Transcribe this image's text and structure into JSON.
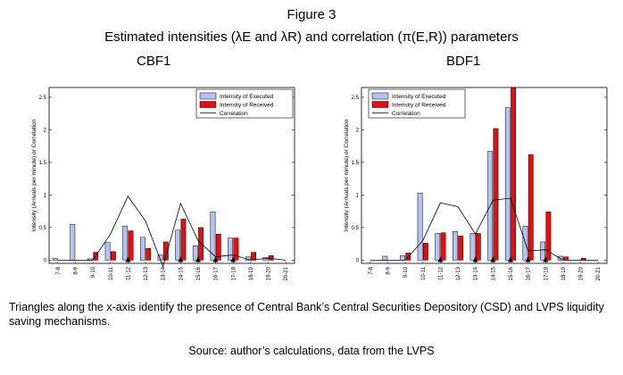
{
  "figure": {
    "title": "Figure 3",
    "subtitle": "Estimated intensities (λE and λR) and correlation (π(E,R)) parameters",
    "footnote": "Triangles along the x-axis identify the presence of Central Bank’s Central Securities Depository (CSD) and LVPS liquidity saving mechanisms.",
    "source": "Source: author’s calculations, data from the LVPS"
  },
  "colors": {
    "executed": "#b7c3ef",
    "received": "#e01010",
    "correlation": "#000000"
  },
  "chart_data": [
    {
      "type": "bar",
      "title": "CBF1",
      "ylabel": "Intensity (Arrivals per minute) or Correlation",
      "ylim": [
        -0.05,
        2.65
      ],
      "yticks": [
        "0",
        "0.5",
        "1",
        "1.5",
        "2",
        "2.5"
      ],
      "categories": [
        "7-8",
        "8-9",
        "9-10",
        "10-11",
        "11-12",
        "12-13",
        "13-14",
        "14-15",
        "15-16",
        "16-17",
        "17-18",
        "18-19",
        "19-20",
        "20-21"
      ],
      "legend_placement": "top-right",
      "series": [
        {
          "name": "Intensity of Executed",
          "kind": "bar",
          "values": [
            0.03,
            0.55,
            0.02,
            0.27,
            0.52,
            0.35,
            0.08,
            0.46,
            0.22,
            0.74,
            0.34,
            0.05,
            0.04,
            0.0
          ]
        },
        {
          "name": "Intensity of Received",
          "kind": "bar",
          "values": [
            0.0,
            0.0,
            0.12,
            0.13,
            0.45,
            0.18,
            0.28,
            0.63,
            0.5,
            0.4,
            0.34,
            0.12,
            0.07,
            0.0
          ]
        },
        {
          "name": "Correlation",
          "kind": "line",
          "values": [
            0.0,
            0.0,
            0.0,
            0.4,
            0.98,
            0.6,
            -0.1,
            0.87,
            0.3,
            0.05,
            0.08,
            0.0,
            0.03,
            0.0
          ]
        }
      ],
      "csd_triangles": [
        "11-12",
        "14-15",
        "15-16",
        "16-17",
        "17-18"
      ]
    },
    {
      "type": "bar",
      "title": "BDF1",
      "ylabel": "Intensity (Arrivals per minute) or Correlation",
      "ylim": [
        -0.05,
        2.65
      ],
      "yticks": [
        "0",
        "0.5",
        "1",
        "1.5",
        "2",
        "2.5"
      ],
      "categories": [
        "7-8",
        "8-9",
        "9-10",
        "10-11",
        "11-12",
        "12-13",
        "13-14",
        "14-15",
        "15-16",
        "16-17",
        "17-18",
        "18-19",
        "19-20",
        "20-21"
      ],
      "legend_placement": "top-left",
      "series": [
        {
          "name": "Intensity of Executed",
          "kind": "bar",
          "values": [
            0.0,
            0.06,
            0.07,
            1.03,
            0.41,
            0.44,
            0.41,
            1.67,
            2.34,
            0.52,
            0.28,
            0.06,
            0.0,
            0.0
          ]
        },
        {
          "name": "Intensity of Received",
          "kind": "bar",
          "values": [
            0.0,
            0.0,
            0.11,
            0.26,
            0.42,
            0.37,
            0.41,
            2.02,
            2.7,
            1.62,
            0.74,
            0.05,
            0.03,
            0.0
          ]
        },
        {
          "name": "Correlation",
          "kind": "line",
          "values": [
            0.0,
            0.0,
            0.0,
            0.3,
            0.88,
            0.82,
            0.4,
            0.92,
            0.95,
            0.14,
            0.16,
            0.0,
            0.0,
            0.0
          ]
        }
      ],
      "csd_triangles": [
        "11-12",
        "13-14",
        "14-15",
        "15-16",
        "16-17",
        "17-18"
      ]
    }
  ]
}
